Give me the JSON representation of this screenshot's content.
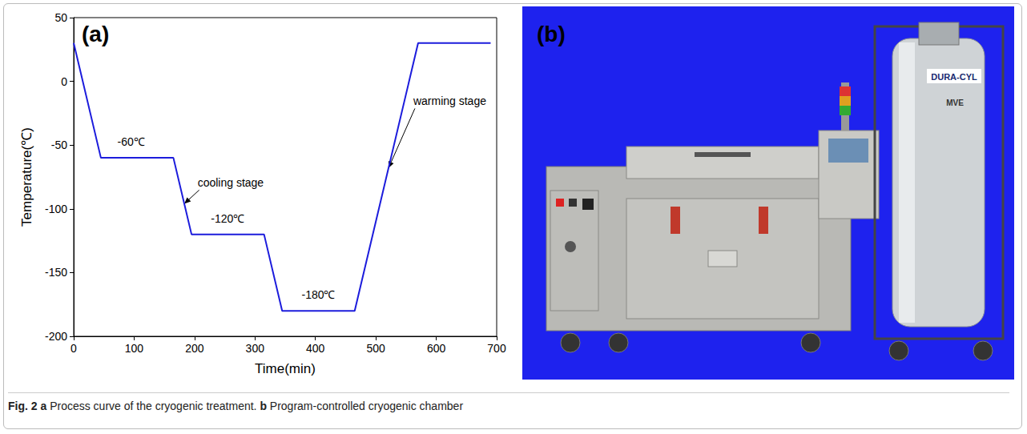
{
  "chart_data": {
    "type": "line",
    "panel_label": "(a)",
    "x_label": "Time(min)",
    "y_label": "Temperature(℃)",
    "x": [
      0,
      45,
      165,
      195,
      315,
      345,
      465,
      570,
      690
    ],
    "values": [
      30,
      -60,
      -60,
      -120,
      -120,
      -180,
      -180,
      30,
      30
    ],
    "color": "#1c1cdc",
    "marker": "none",
    "grid": false,
    "xlim": [
      0,
      700
    ],
    "xticks": [
      0,
      100,
      200,
      300,
      400,
      500,
      600,
      700
    ],
    "ylim": [
      -200,
      50
    ],
    "yticks": [
      -200,
      -150,
      -100,
      -50,
      0,
      50
    ],
    "annotations": [
      {
        "text": "-60℃",
        "x": 95,
        "y": -52
      },
      {
        "text": "-120℃",
        "x": 255,
        "y": -112
      },
      {
        "text": "-180℃",
        "x": 405,
        "y": -172
      },
      {
        "text": "cooling stage",
        "x": 205,
        "y": -84,
        "arrow_to": {
          "x": 183,
          "y": -96
        }
      },
      {
        "text": "warming stage",
        "x": 562,
        "y": -20,
        "arrow_to": {
          "x": 521,
          "y": -68
        }
      }
    ]
  },
  "panel_b": {
    "label": "(b)",
    "cylinder_texts": [
      "DURA-CYL",
      "MVE"
    ]
  },
  "caption": {
    "label": "Fig. 2",
    "parts": [
      {
        "letter": "a",
        "text": "Process curve of the cryogenic treatment."
      },
      {
        "letter": "b",
        "text": "Program-controlled cryogenic chamber"
      }
    ]
  }
}
